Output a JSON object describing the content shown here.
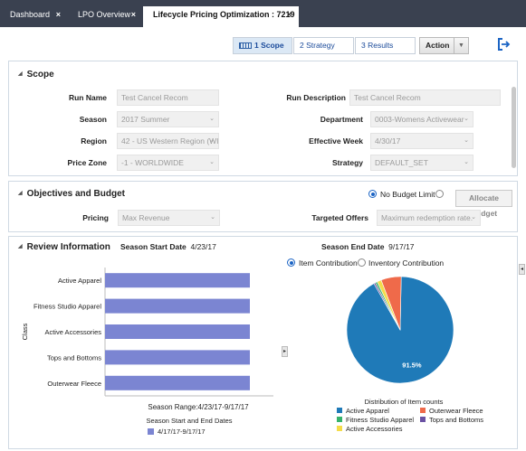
{
  "tabs": [
    {
      "label": "Dashboard",
      "close": "×"
    },
    {
      "label": "LPO Overview",
      "close": "×"
    },
    {
      "label": "Lifecycle Pricing Optimization : 7219",
      "close": "×"
    }
  ],
  "train": {
    "scope": "1 Scope",
    "strategy": "2 Strategy",
    "results": "3 Results"
  },
  "action": {
    "label": "Action",
    "caret": "▼"
  },
  "scope": {
    "title": "Scope",
    "run_name": {
      "label": "Run Name",
      "value": "Test Cancel Recom"
    },
    "season": {
      "label": "Season",
      "value": "2017 Summer"
    },
    "region": {
      "label": "Region",
      "value": "42 - US Western Region (WI"
    },
    "price_zone": {
      "label": "Price Zone",
      "value": "-1 - WORLDWIDE"
    },
    "run_description": {
      "label": "Run Description",
      "value": "Test Cancel Recom"
    },
    "department": {
      "label": "Department",
      "value": "0003-Womens Activewear"
    },
    "effective_week": {
      "label": "Effective Week",
      "value": "4/30/17"
    },
    "strategy": {
      "label": "Strategy",
      "value": "DEFAULT_SET"
    }
  },
  "objectives": {
    "title": "Objectives and Budget",
    "no_budget_limit": "No Budget Limit",
    "allocate_budget": "Allocate Budget",
    "pricing": {
      "label": "Pricing",
      "value": "Max Revenue"
    },
    "targeted_offers": {
      "label": "Targeted Offers",
      "value": "Maximum redemption rate."
    }
  },
  "review": {
    "title": "Review Information",
    "season_start_label": "Season Start Date",
    "season_start_value": "4/23/17",
    "season_end_label": "Season End Date",
    "season_end_value": "9/17/17",
    "item_contribution": "Item Contribution",
    "inventory_contribution": "Inventory Contribution"
  },
  "chart_data": [
    {
      "type": "bar",
      "orientation": "horizontal",
      "categories": [
        "Active Apparel",
        "Fitness Studio Apparel",
        "Active Accessories",
        "Tops and Bottoms",
        "Outerwear Fleece"
      ],
      "series": [
        {
          "name": "4/17/17-9/17/17",
          "values": [
            1,
            1,
            1,
            1,
            1
          ],
          "color": "#7b85d2"
        }
      ],
      "ylabel": "Class",
      "xlabel": "Season Range:4/23/17-9/17/17",
      "legend_title": "Season Start and End Dates",
      "legend_position": "bottom",
      "grid": false
    },
    {
      "type": "pie",
      "title": "Distribution of Item counts",
      "slices": [
        {
          "label": "Active Apparel",
          "value": 91.5,
          "color": "#1f7ab8",
          "data_label": "91.5%"
        },
        {
          "label": "Fitness Studio Apparel",
          "value": 0.6,
          "color": "#35b26b"
        },
        {
          "label": "Active Accessories",
          "value": 1.3,
          "color": "#f4dc4a"
        },
        {
          "label": "Outerwear Fleece",
          "value": 6.1,
          "color": "#ef6a4a"
        },
        {
          "label": "Tops and Bottoms",
          "value": 0.5,
          "color": "#6a51a3"
        }
      ],
      "legend_position": "bottom"
    }
  ],
  "colors": {
    "tab_bar": "#3a4150",
    "accent_blue": "#1a4a9a",
    "panel_border": "#cfd9e3"
  }
}
